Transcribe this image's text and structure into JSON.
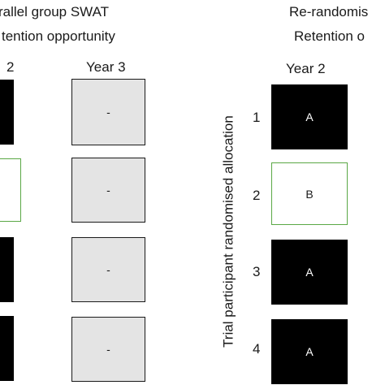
{
  "left_panel": {
    "title_line1": "rallel group SWAT",
    "title_line2": "tention opportunity",
    "col1_header": "2",
    "col2_header": "Year 3",
    "rows": [
      {
        "year2": {
          "style": "black",
          "label": ""
        },
        "year3": {
          "style": "grey",
          "label": "-"
        }
      },
      {
        "year2": {
          "style": "outline",
          "label": ""
        },
        "year3": {
          "style": "grey",
          "label": "-"
        }
      },
      {
        "year2": {
          "style": "black",
          "label": ""
        },
        "year3": {
          "style": "grey",
          "label": "-"
        }
      },
      {
        "year2": {
          "style": "black",
          "label": ""
        },
        "year3": {
          "style": "grey",
          "label": "-"
        }
      }
    ]
  },
  "right_panel": {
    "title_line1": "Re-randomis",
    "title_line2": "Retention o",
    "col_header": "Year 2",
    "axis_label": "Trial participant randomised allocation",
    "rows": [
      {
        "num": "1",
        "cell": {
          "style": "black",
          "label": "A"
        }
      },
      {
        "num": "2",
        "cell": {
          "style": "outline",
          "label": "B"
        }
      },
      {
        "num": "3",
        "cell": {
          "style": "black",
          "label": "A"
        }
      },
      {
        "num": "4",
        "cell": {
          "style": "black",
          "label": "A"
        }
      }
    ]
  },
  "colors": {
    "black_cell": "#000000",
    "outline_border": "#5aa845",
    "grey_cell": "#e4e4e4"
  }
}
